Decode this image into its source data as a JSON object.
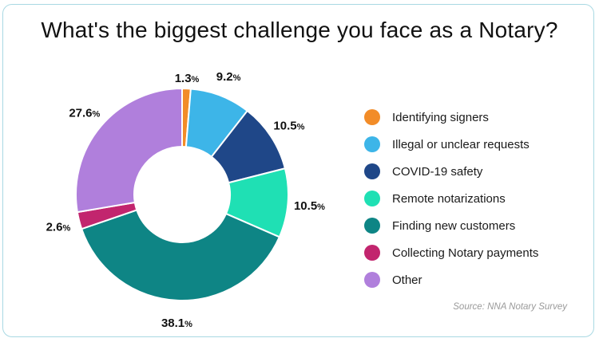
{
  "title": "What's the biggest challenge you face as a Notary?",
  "source": "Source: NNA Notary Survey",
  "chart_data": {
    "type": "pie",
    "variant": "donut",
    "title": "What's the biggest challenge you face as a Notary?",
    "categories": [
      "Identifying signers",
      "Illegal or unclear requests",
      "COVID-19 safety",
      "Remote notarizations",
      "Finding new customers",
      "Collecting Notary payments",
      "Other"
    ],
    "values": [
      1.3,
      9.2,
      10.5,
      10.5,
      38.1,
      2.6,
      27.6
    ],
    "value_labels": [
      "1.3",
      "9.2",
      "10.5",
      "10.5",
      "38.1",
      "2.6",
      "27.6"
    ],
    "unit": "%",
    "colors": [
      "#f28c28",
      "#3db5e8",
      "#1f4788",
      "#1fe0b4",
      "#0e8585",
      "#c2256e",
      "#b07fdc"
    ],
    "legend": "right"
  }
}
